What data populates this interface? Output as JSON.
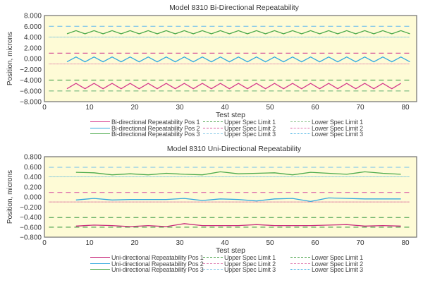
{
  "chart_data": [
    {
      "type": "line",
      "title": "Model 8310 Bi-Directional Repeatability",
      "xlabel": "Test step",
      "ylabel": "Position, microns",
      "xlim": [
        0,
        82.5
      ],
      "ylim": [
        -8,
        8
      ],
      "xticks": [
        "0",
        "10",
        "20",
        "30",
        "40",
        "50",
        "60",
        "70",
        "80"
      ],
      "xtick_values": [
        0,
        10,
        20,
        30,
        40,
        50,
        60,
        70,
        80
      ],
      "yticks": [
        "8.000",
        "6.000",
        "4.000",
        "2.000",
        "0.000",
        "−2.000",
        "−4.000",
        "−6.000",
        "−8.000"
      ],
      "ytick_values": [
        8,
        6,
        4,
        2,
        0,
        -2,
        -4,
        -6,
        -8
      ],
      "plot_background": "#fefbd6",
      "legend_position": "bottom",
      "series": [
        {
          "name": "Bi-directional Repeatability Pos 1",
          "color": "#d63a8c",
          "style": "solid",
          "x": [
            5,
            7,
            9,
            11,
            13,
            15,
            17,
            19,
            21,
            23,
            25,
            27,
            29,
            31,
            33,
            35,
            37,
            39,
            41,
            43,
            45,
            47,
            49,
            51,
            53,
            55,
            57,
            59,
            61,
            63,
            65,
            67,
            69,
            71,
            73,
            75,
            77,
            79
          ],
          "values": [
            -5.6,
            -4.6,
            -5.6,
            -4.6,
            -5.6,
            -4.6,
            -5.6,
            -4.6,
            -5.6,
            -4.6,
            -5.6,
            -4.6,
            -5.6,
            -4.6,
            -5.6,
            -4.6,
            -5.6,
            -4.6,
            -5.6,
            -4.6,
            -5.6,
            -4.6,
            -5.6,
            -4.6,
            -5.6,
            -4.6,
            -5.6,
            -4.6,
            -5.6,
            -4.6,
            -5.6,
            -4.6,
            -5.6,
            -4.6,
            -5.6,
            -4.6,
            -5.6,
            -4.6
          ]
        },
        {
          "name": "Bi-directional Repeatability Pos 2",
          "color": "#30a8e0",
          "style": "solid",
          "x": [
            5,
            7,
            9,
            11,
            13,
            15,
            17,
            19,
            21,
            23,
            25,
            27,
            29,
            31,
            33,
            35,
            37,
            39,
            41,
            43,
            45,
            47,
            49,
            51,
            53,
            55,
            57,
            59,
            61,
            63,
            65,
            67,
            69,
            71,
            73,
            75,
            77,
            79,
            81
          ],
          "values": [
            -0.6,
            0.3,
            -0.6,
            0.3,
            -0.6,
            0.3,
            -0.6,
            0.3,
            -0.6,
            0.3,
            -0.6,
            0.3,
            -0.6,
            0.3,
            -0.6,
            0.3,
            -0.6,
            0.3,
            -0.6,
            0.3,
            -0.6,
            0.3,
            -0.6,
            0.3,
            -0.6,
            0.3,
            -0.6,
            0.3,
            -0.6,
            0.3,
            -0.6,
            0.3,
            -0.6,
            0.3,
            -0.6,
            0.3,
            -0.6,
            0.3,
            -0.6
          ]
        },
        {
          "name": "Bi-directional Repeatability Pos 3",
          "color": "#4caa4c",
          "style": "solid",
          "x": [
            5,
            7,
            9,
            11,
            13,
            15,
            17,
            19,
            21,
            23,
            25,
            27,
            29,
            31,
            33,
            35,
            37,
            39,
            41,
            43,
            45,
            47,
            49,
            51,
            53,
            55,
            57,
            59,
            61,
            63,
            65,
            67,
            69,
            71,
            73,
            75,
            77,
            79,
            81
          ],
          "values": [
            4.6,
            5.2,
            4.6,
            5.2,
            4.6,
            5.2,
            4.6,
            5.2,
            4.6,
            5.2,
            4.6,
            5.2,
            4.6,
            5.2,
            4.6,
            5.2,
            4.6,
            5.2,
            4.6,
            5.2,
            4.6,
            5.2,
            4.6,
            5.2,
            4.6,
            5.2,
            4.6,
            5.2,
            4.6,
            5.2,
            4.6,
            5.2,
            4.6,
            5.2,
            4.6,
            5.2,
            4.6,
            5.2,
            4.6
          ]
        },
        {
          "name": "Upper Spec Limit 1",
          "color": "#5aaa5a",
          "style": "dashed",
          "x": [
            1,
            81
          ],
          "values": [
            -4.0,
            -4.0
          ]
        },
        {
          "name": "Upper Spec Limit 2",
          "color": "#d65a9a",
          "style": "dashed",
          "x": [
            1,
            81
          ],
          "values": [
            1.0,
            1.0
          ]
        },
        {
          "name": "Upper Spec Limit 3",
          "color": "#8ccbe8",
          "style": "dashed",
          "x": [
            1,
            81
          ],
          "values": [
            6.0,
            6.0
          ]
        },
        {
          "name": "Lower Spec Limit 1",
          "color": "#8cc48c",
          "style": "dashed",
          "x": [
            1,
            81
          ],
          "values": [
            -6.0,
            -6.0
          ]
        },
        {
          "name": "Lower Spec Limit 2",
          "color": "#d65a9a",
          "style": "dotted",
          "x": [
            1,
            81
          ],
          "values": [
            -1.0,
            -1.0
          ]
        },
        {
          "name": "Lower Spec Limit 3",
          "color": "#30a8e0",
          "style": "dotted",
          "x": [
            1,
            81
          ],
          "values": [
            4.0,
            4.0
          ]
        }
      ]
    },
    {
      "type": "line",
      "title": "Model 8310 Uni-Directional Repeatability",
      "xlabel": "Test step",
      "ylabel": "Position, microns",
      "xlim": [
        0,
        82.5
      ],
      "ylim": [
        -0.8,
        0.8
      ],
      "xticks": [
        "0",
        "10",
        "20",
        "30",
        "40",
        "50",
        "60",
        "70",
        "80"
      ],
      "xtick_values": [
        0,
        10,
        20,
        30,
        40,
        50,
        60,
        70,
        80
      ],
      "yticks": [
        "0.800",
        "0.600",
        "0.400",
        "0.200",
        "0.000",
        "−0.200",
        "−0.400",
        "−0.600",
        "−0.800"
      ],
      "ytick_values": [
        0.8,
        0.6,
        0.4,
        0.2,
        0,
        -0.2,
        -0.4,
        -0.6,
        -0.8
      ],
      "plot_background": "#fefbd6",
      "legend_position": "bottom",
      "series": [
        {
          "name": "Uni-directional Repeatability Pos 1",
          "color": "#c8287a",
          "style": "solid",
          "x": [
            7,
            11,
            15,
            19,
            23,
            27,
            31,
            35,
            39,
            43,
            47,
            51,
            55,
            59,
            63,
            67,
            71,
            75,
            79
          ],
          "values": [
            -0.58,
            -0.56,
            -0.57,
            -0.59,
            -0.57,
            -0.59,
            -0.53,
            -0.57,
            -0.57,
            -0.57,
            -0.55,
            -0.57,
            -0.57,
            -0.57,
            -0.56,
            -0.55,
            -0.58,
            -0.57,
            -0.58
          ]
        },
        {
          "name": "Uni-directional Repeatability Pos 2",
          "color": "#30a8e0",
          "style": "solid",
          "x": [
            7,
            11,
            15,
            19,
            23,
            27,
            31,
            35,
            39,
            43,
            47,
            51,
            55,
            59,
            63,
            67,
            71,
            75,
            79
          ],
          "values": [
            -0.06,
            -0.03,
            -0.06,
            -0.05,
            -0.05,
            -0.05,
            -0.03,
            -0.07,
            -0.04,
            -0.05,
            -0.08,
            -0.04,
            -0.03,
            -0.09,
            -0.02,
            -0.03,
            -0.04,
            -0.04,
            -0.04
          ]
        },
        {
          "name": "Uni-directional Repeatability Pos 3",
          "color": "#4caa4c",
          "style": "solid",
          "x": [
            7,
            11,
            15,
            19,
            23,
            27,
            31,
            35,
            39,
            43,
            47,
            51,
            55,
            59,
            63,
            67,
            71,
            75,
            79
          ],
          "values": [
            0.49,
            0.48,
            0.44,
            0.46,
            0.44,
            0.47,
            0.45,
            0.44,
            0.5,
            0.46,
            0.47,
            0.48,
            0.44,
            0.49,
            0.47,
            0.45,
            0.5,
            0.47,
            0.45
          ]
        },
        {
          "name": "Upper Spec Limit 1",
          "color": "#5aaa5a",
          "style": "dashed",
          "x": [
            1,
            81
          ],
          "values": [
            -0.41,
            -0.41
          ]
        },
        {
          "name": "Upper Spec Limit 2",
          "color": "#e07aae",
          "style": "dashed",
          "x": [
            1,
            81
          ],
          "values": [
            0.09,
            0.09
          ]
        },
        {
          "name": "Upper Spec Limit 3",
          "color": "#8ccbe8",
          "style": "dashed",
          "x": [
            1,
            81
          ],
          "values": [
            0.59,
            0.59
          ]
        },
        {
          "name": "Lower Spec Limit 1",
          "color": "#5aaa5a",
          "style": "dashed",
          "x": [
            1,
            81
          ],
          "values": [
            -0.6,
            -0.6
          ]
        },
        {
          "name": "Lower Spec Limit 2",
          "color": "#c8287a",
          "style": "dotted",
          "x": [
            1,
            81
          ],
          "values": [
            -0.1,
            -0.1
          ]
        },
        {
          "name": "Lower Spec Limit 3",
          "color": "#30a8e0",
          "style": "dotted",
          "x": [
            1,
            81
          ],
          "values": [
            0.4,
            0.4
          ]
        }
      ],
      "legend_overrides": {
        "Lower Spec Limit 2": {
          "color": "#e07aae",
          "style": "dashed"
        }
      }
    }
  ]
}
